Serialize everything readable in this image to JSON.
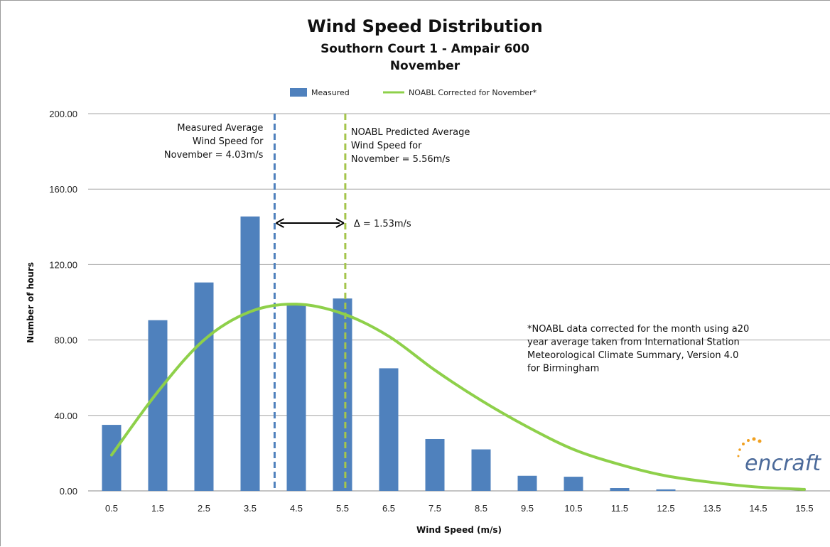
{
  "chart_data": {
    "type": "bar",
    "title": "Wind Speed Distribution",
    "subtitle_lines": [
      "Southorn Court 1 - Ampair 600",
      "November"
    ],
    "xlabel": "Wind Speed (m/s)",
    "ylabel": "Number of hours",
    "ylim": [
      0,
      200
    ],
    "y_ticks": [
      "0.00",
      "40.00",
      "80.00",
      "120.00",
      "160.00",
      "200.00"
    ],
    "grid": "horizontal",
    "legend_position": "top",
    "categories": [
      "0.5",
      "1.5",
      "2.5",
      "3.5",
      "4.5",
      "5.5",
      "6.5",
      "7.5",
      "8.5",
      "9.5",
      "10.5",
      "11.5",
      "12.5",
      "13.5",
      "14.5",
      "15.5"
    ],
    "series": [
      {
        "name": "Measured",
        "type": "bar",
        "color": "#4f81bd",
        "values": [
          35,
          90.5,
          110.5,
          145.5,
          98.5,
          102,
          65,
          27.5,
          22,
          8,
          7.5,
          1.5,
          0.8,
          0,
          0,
          0
        ]
      },
      {
        "name": "NOABL Corrected for November*",
        "type": "line",
        "color": "#8ed04a",
        "values": [
          19,
          52.5,
          80,
          95,
          99,
          94,
          82,
          64,
          48,
          34,
          22,
          14,
          8,
          4.5,
          2,
          0.8
        ]
      }
    ],
    "reference_lines": [
      {
        "x": 4.03,
        "color": "#4f81bd",
        "label_lines": [
          "Measured Average",
          "Wind Speed for",
          "November = 4.03m/s"
        ]
      },
      {
        "x": 5.56,
        "color": "#a4c54c",
        "label_lines": [
          "NOABL Predicted Average",
          "Wind Speed for",
          "November = 5.56m/s"
        ]
      }
    ],
    "difference_annotation": {
      "label": "Δ = 1.53m/s",
      "from": 4.03,
      "to": 5.56,
      "y": 142
    },
    "footnote_lines": [
      "*NOABL data corrected for the month using a20",
      "year average taken from International Station",
      "Meteorological Climate Summary, Version 4.0",
      "for Birmingham"
    ],
    "logo_text": "encraft"
  }
}
